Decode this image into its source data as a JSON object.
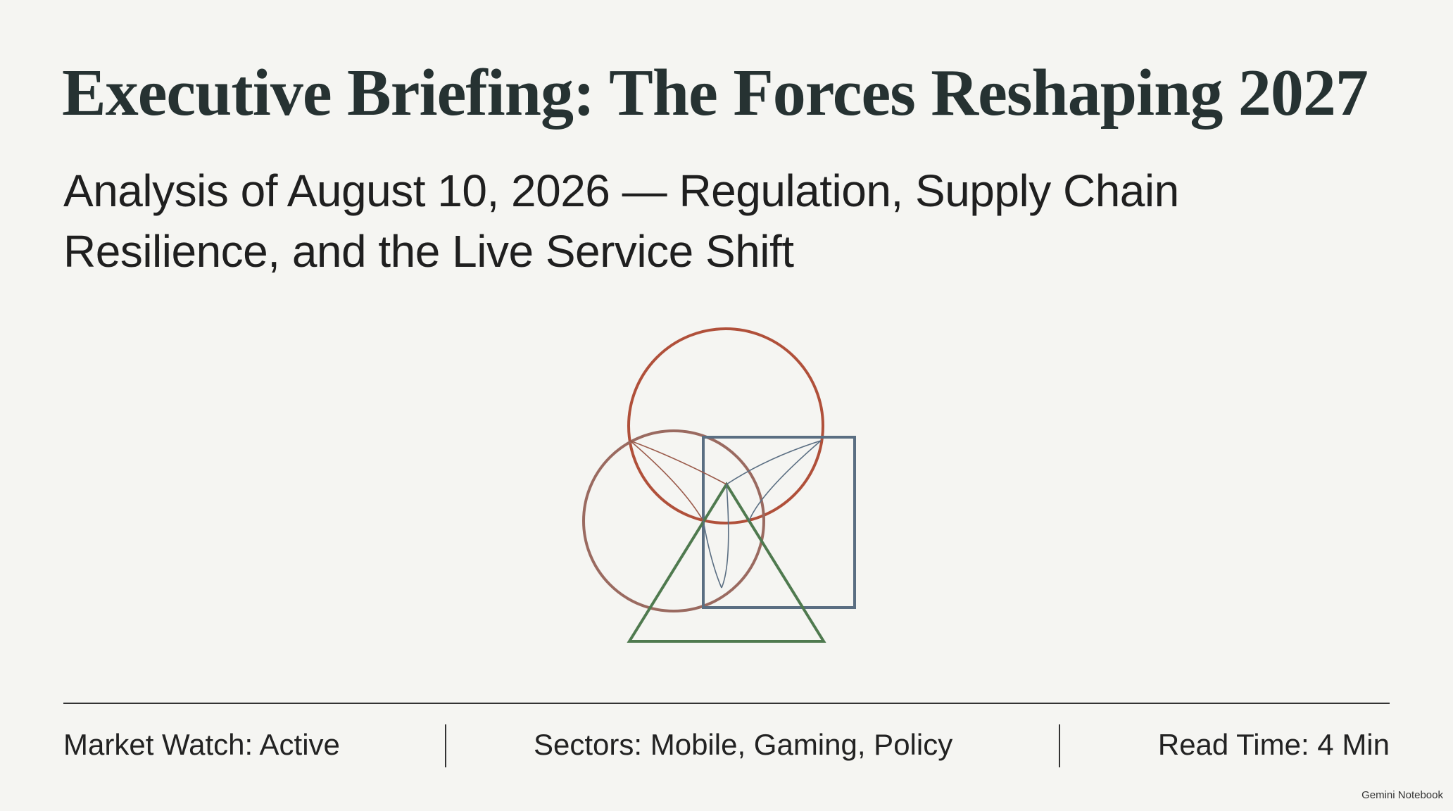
{
  "header": {
    "title": "Executive Briefing: The Forces Reshaping 2027",
    "subtitle_lines": [
      "Analysis of August 10, 2026 — Regulation, Supply Chain",
      "Resilience, and the Live Service Shift"
    ]
  },
  "footer": {
    "items": [
      "Market Watch: Active",
      "Sectors: Mobile, Gaming, Policy",
      "Read Time: 4 Min"
    ]
  },
  "watermark": "Gemini Notebook"
}
